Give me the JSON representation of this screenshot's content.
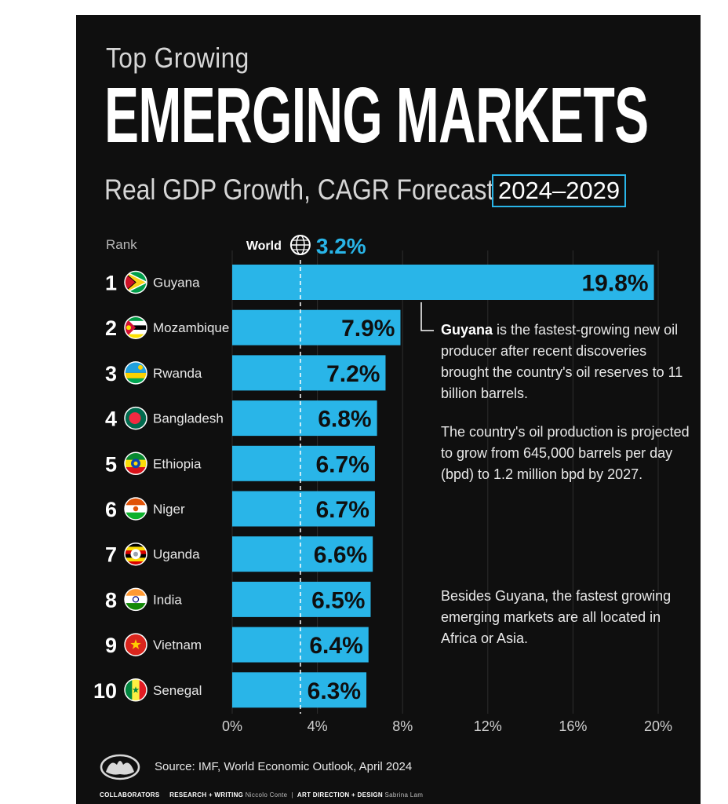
{
  "header": {
    "kicker": "Top Growing",
    "title": "EMERGING MARKETS",
    "subtitle": "Real GDP Growth, CAGR Forecast",
    "period": "2024–2029"
  },
  "rank_label": "Rank",
  "world": {
    "label": "World",
    "value_label": "3.2%"
  },
  "colors": {
    "bar": "#29b5e8",
    "background": "#0f0f0f",
    "accent": "#29b5e8"
  },
  "chart_data": {
    "type": "bar",
    "orientation": "horizontal",
    "categories": [
      "Guyana",
      "Mozambique",
      "Rwanda",
      "Bangladesh",
      "Ethiopia",
      "Niger",
      "Uganda",
      "India",
      "Vietnam",
      "Senegal"
    ],
    "ranks": [
      1,
      2,
      3,
      4,
      5,
      6,
      7,
      8,
      9,
      10
    ],
    "values": [
      19.8,
      7.9,
      7.2,
      6.8,
      6.7,
      6.7,
      6.6,
      6.5,
      6.4,
      6.3
    ],
    "value_labels": [
      "19.8%",
      "7.9%",
      "7.2%",
      "6.8%",
      "6.7%",
      "6.7%",
      "6.6%",
      "6.5%",
      "6.4%",
      "6.3%"
    ],
    "xlim": [
      0,
      20
    ],
    "xticks": [
      0,
      4,
      8,
      12,
      16,
      20
    ],
    "xtick_labels": [
      "0%",
      "4%",
      "8%",
      "12%",
      "16%",
      "20%"
    ],
    "reference_line": {
      "label": "World",
      "value": 3.2
    },
    "grid": true
  },
  "annotations": {
    "note1_bold": "Guyana",
    "note1_rest": " is the fastest-growing new oil producer after recent discoveries brought the country's oil reserves to 11 billion barrels.",
    "note2": "The country's oil production is projected to grow from 645,000 barrels per day (bpd) to 1.2 million bpd by 2027.",
    "note3": "Besides Guyana, the fastest growing emerging markets are all located in Africa or Asia."
  },
  "footer": {
    "source": "Source: IMF, World Economic Outlook, April 2024",
    "collaborators": "COLLABORATORS",
    "research_label": "RESEARCH + WRITING",
    "research_name": "Niccolo Conte",
    "separator": "|",
    "design_label": "ART DIRECTION + DESIGN",
    "design_name": "Sabrina Lam"
  },
  "flags": [
    {
      "country": "Guyana",
      "icon": "guyana-flag-icon"
    },
    {
      "country": "Mozambique",
      "icon": "mozambique-flag-icon"
    },
    {
      "country": "Rwanda",
      "icon": "rwanda-flag-icon"
    },
    {
      "country": "Bangladesh",
      "icon": "bangladesh-flag-icon"
    },
    {
      "country": "Ethiopia",
      "icon": "ethiopia-flag-icon"
    },
    {
      "country": "Niger",
      "icon": "niger-flag-icon"
    },
    {
      "country": "Uganda",
      "icon": "uganda-flag-icon"
    },
    {
      "country": "India",
      "icon": "india-flag-icon"
    },
    {
      "country": "Vietnam",
      "icon": "vietnam-flag-icon"
    },
    {
      "country": "Senegal",
      "icon": "senegal-flag-icon"
    }
  ]
}
